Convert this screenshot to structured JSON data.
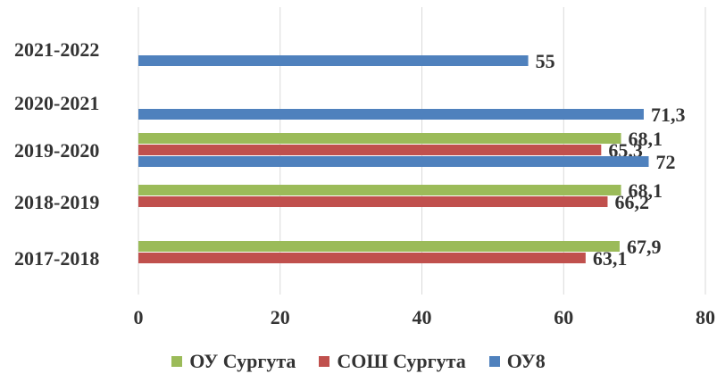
{
  "chart_data": {
    "type": "bar",
    "orientation": "horizontal",
    "categories": [
      "2017-2018",
      "2018-2019",
      "2019-2020",
      "2020-2021",
      "2021-2022"
    ],
    "series": [
      {
        "name": "ОУ Сургута",
        "color": "#9BBB59",
        "values": [
          67.9,
          68.1,
          68.1,
          null,
          null
        ],
        "labels": [
          "67,9",
          "68,1",
          "68,1",
          "",
          ""
        ]
      },
      {
        "name": "СОШ Сургута",
        "color": "#C0504D",
        "values": [
          63.1,
          66.2,
          65.3,
          null,
          null
        ],
        "labels": [
          "63,1",
          "66,2",
          "65,3",
          "",
          ""
        ]
      },
      {
        "name": "ОУ8",
        "color": "#4F81BD",
        "values": [
          null,
          null,
          72,
          71.3,
          55
        ],
        "labels": [
          "",
          "",
          "72",
          "71,3",
          "55"
        ]
      }
    ],
    "xlim": [
      0,
      80
    ],
    "xticks": [
      0,
      20,
      40,
      60,
      80
    ],
    "grid": true,
    "legend": "bottom"
  }
}
